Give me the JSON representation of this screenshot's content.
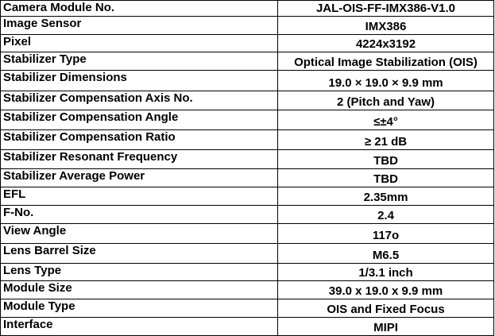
{
  "table": {
    "rows": [
      [
        "Camera Module No.",
        "JAL-OIS-FF-IMX386-V1.0"
      ],
      [
        "Image Sensor",
        "IMX386"
      ],
      [
        "Pixel",
        "4224x3192"
      ],
      [
        "Stabilizer Type",
        "Optical Image Stabilization (OIS)"
      ],
      [
        "Stabilizer Dimensions",
        "19.0 × 19.0 × 9.9 mm"
      ],
      [
        "Stabilizer Compensation Axis No.",
        "2 (Pitch and Yaw)"
      ],
      [
        "Stabilizer Compensation Angle",
        "≤±4°"
      ],
      [
        "Stabilizer Compensation Ratio",
        "≥ 21 dB"
      ],
      [
        "Stabilizer Resonant Frequency",
        "TBD"
      ],
      [
        "Stabilizer Average Power",
        "TBD"
      ],
      [
        "EFL",
        "2.35mm"
      ],
      [
        "F-No.",
        "2.4"
      ],
      [
        "View Angle",
        "117o"
      ],
      [
        "Lens Barrel Size",
        "M6.5"
      ],
      [
        "Lens Type",
        "1/3.1 inch"
      ],
      [
        "Module Size",
        "39.0 x 19.0 x 9.9 mm"
      ],
      [
        "Module Type",
        "OIS and Fixed Focus"
      ],
      [
        "Interface",
        "MIPI"
      ]
    ]
  }
}
